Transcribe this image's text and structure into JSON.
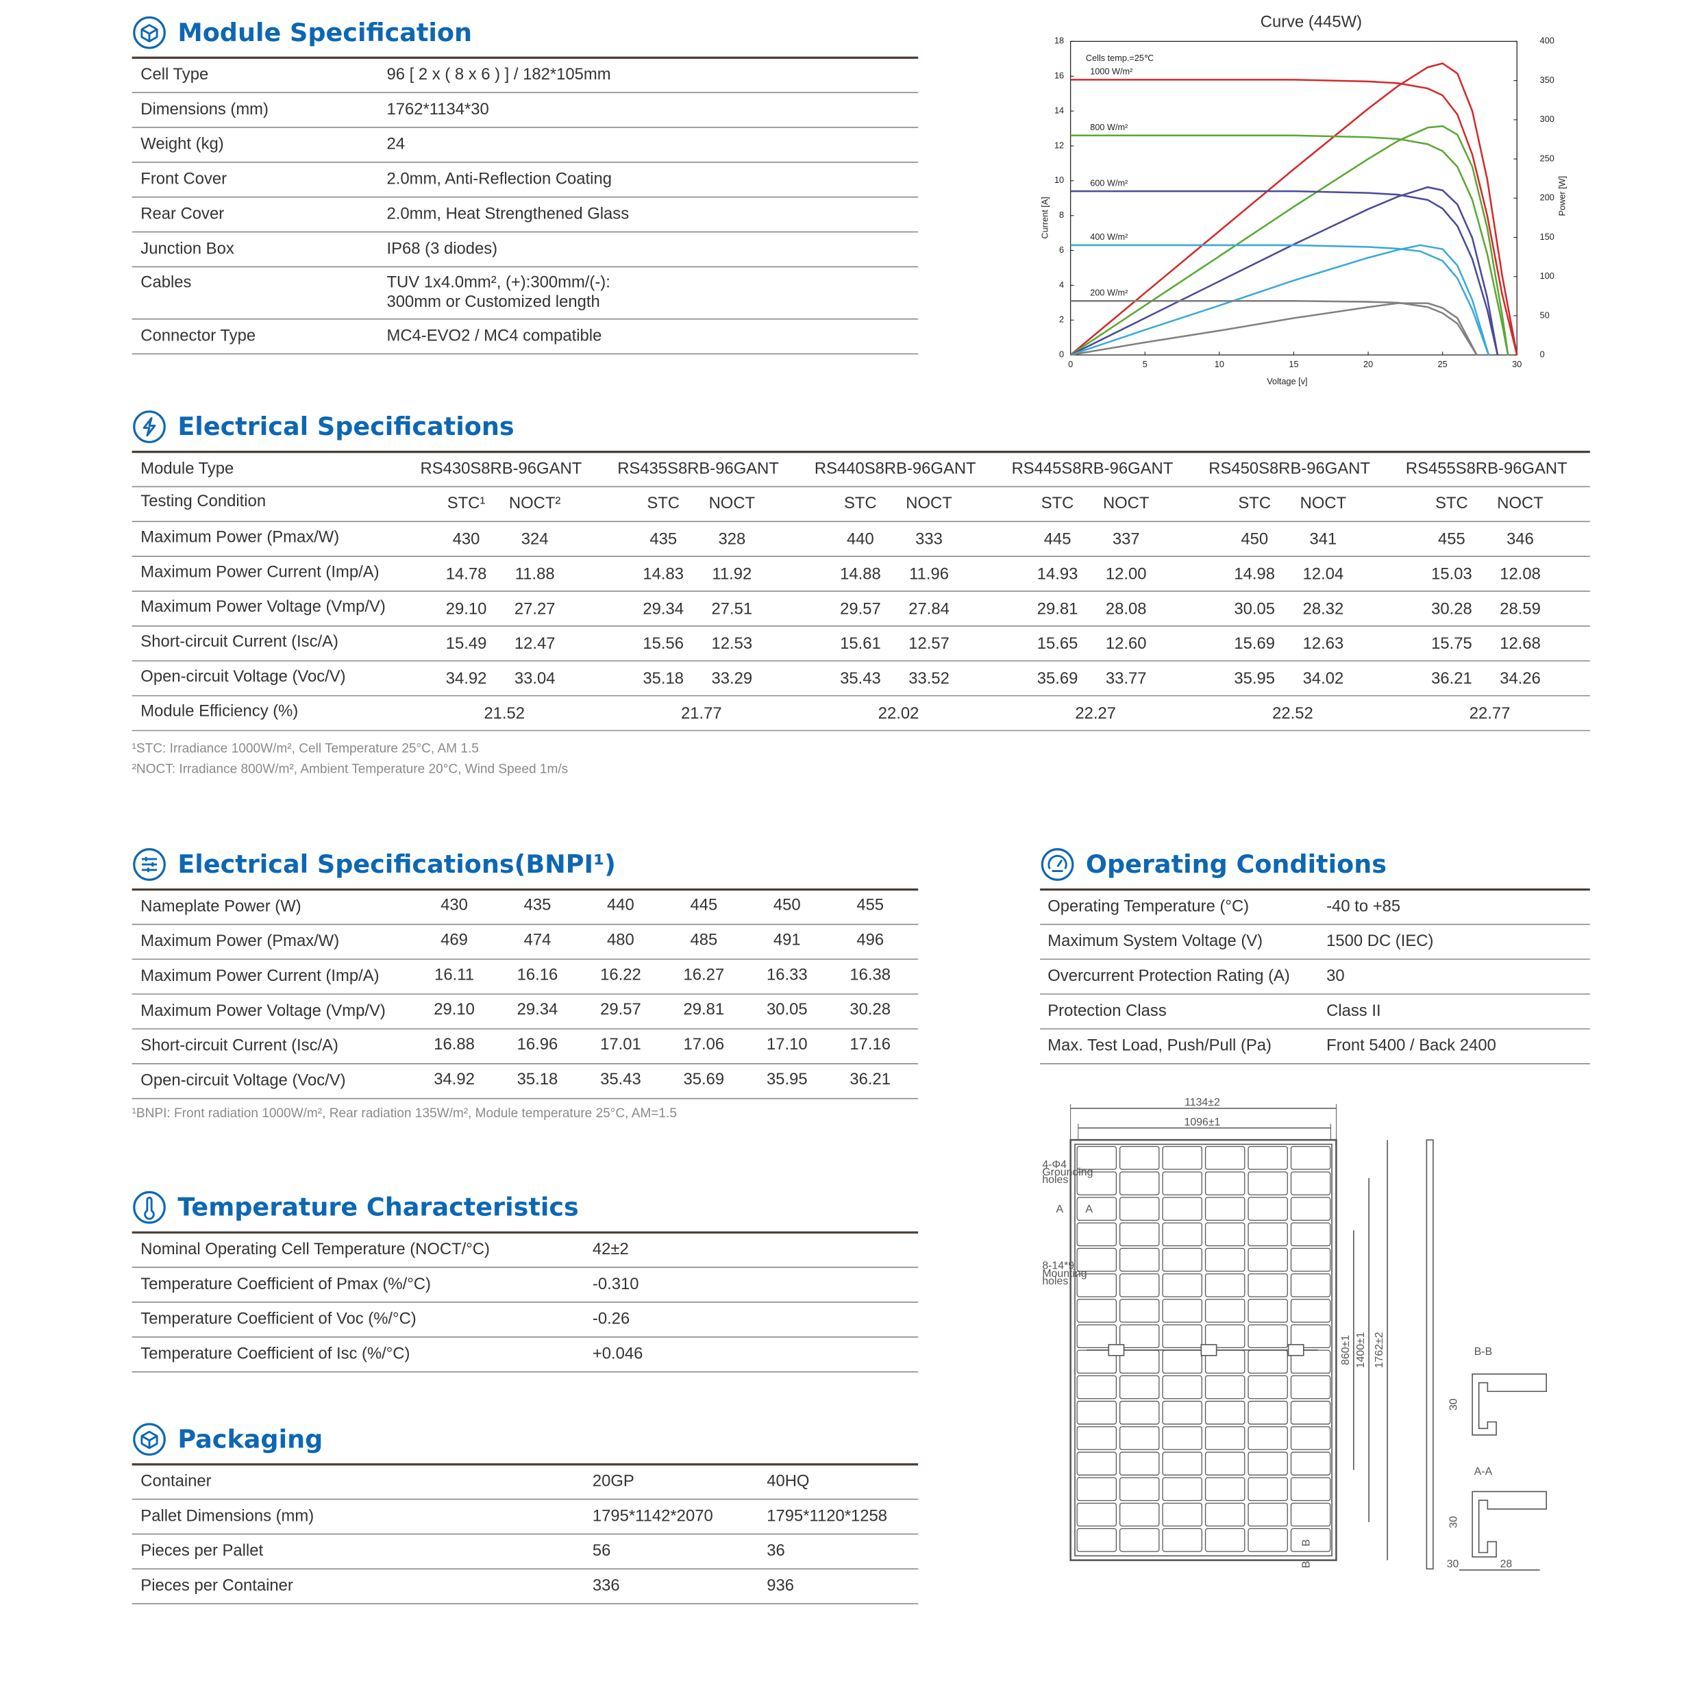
{
  "module_specification": {
    "title": "Module Specification",
    "rows": [
      [
        "Cell Type",
        "96 [ 2 x ( 8 x 6 ) ] / 182*105mm"
      ],
      [
        "Dimensions (mm)",
        "1762*1134*30"
      ],
      [
        "Weight (kg)",
        "24"
      ],
      [
        "Front Cover",
        "2.0mm, Anti-Reflection Coating"
      ],
      [
        "Rear Cover",
        "2.0mm, Heat Strengthened Glass"
      ],
      [
        "Junction Box",
        "IP68 (3 diodes)"
      ],
      [
        "Cables",
        [
          "TUV 1x4.0mm², (+):300mm/(-):",
          "300mm or Customized length"
        ]
      ],
      [
        "Connector Type",
        "MC4-EVO2 / MC4 compatible"
      ]
    ]
  },
  "curve": {
    "title": "Curve (445W)",
    "note": "Cells temp.=25℃",
    "xlabel": "Voltage [v]",
    "ylabel": "Current [A]",
    "y2label": "Power [W]",
    "xlim": [
      0,
      30
    ],
    "xticks": [
      0,
      5,
      10,
      15,
      20,
      25,
      30
    ],
    "ylim": [
      0,
      18
    ],
    "yticks": [
      0,
      2,
      4,
      6,
      8,
      10,
      12,
      14,
      16,
      18
    ],
    "y2lim": [
      0,
      400
    ],
    "y2ticks": [
      0,
      50,
      100,
      150,
      200,
      250,
      300,
      350,
      400
    ],
    "series": [
      {
        "name": "1000 W/m²",
        "color": "#d42a2a",
        "x": [
          0,
          5,
          10,
          15,
          20,
          22,
          24,
          25,
          26,
          27,
          28,
          29,
          30
        ],
        "current": [
          15.8,
          15.8,
          15.8,
          15.8,
          15.7,
          15.6,
          15.3,
          14.9,
          13.8,
          11.5,
          8,
          3.5,
          0
        ],
        "power": [
          0,
          79,
          158,
          237,
          314,
          343,
          367,
          372,
          359,
          311,
          224,
          102,
          0
        ]
      },
      {
        "name": "800 W/m²",
        "color": "#5aa832",
        "x": [
          0,
          5,
          10,
          15,
          20,
          22,
          24,
          25,
          26,
          27,
          28,
          29,
          29.4
        ],
        "current": [
          12.6,
          12.6,
          12.6,
          12.6,
          12.5,
          12.4,
          12.1,
          11.7,
          10.8,
          8.9,
          5.8,
          1.8,
          0
        ],
        "power": [
          0,
          63,
          126,
          189,
          250,
          273,
          290,
          292,
          281,
          240,
          162,
          52,
          0
        ]
      },
      {
        "name": "600 W/m²",
        "color": "#4a4a9a",
        "x": [
          0,
          5,
          10,
          15,
          20,
          22,
          24,
          25,
          26,
          27,
          28,
          28.7
        ],
        "current": [
          9.4,
          9.4,
          9.4,
          9.4,
          9.3,
          9.2,
          8.9,
          8.4,
          7.4,
          5.5,
          2.6,
          0
        ],
        "power": [
          0,
          47,
          94,
          141,
          186,
          202,
          214,
          210,
          192,
          149,
          73,
          0
        ]
      },
      {
        "name": "400 W/m²",
        "color": "#3aaad6",
        "x": [
          0,
          5,
          10,
          15,
          20,
          22,
          23.5,
          25,
          26,
          27,
          28.1
        ],
        "current": [
          6.3,
          6.3,
          6.3,
          6.3,
          6.2,
          6.1,
          5.95,
          5.4,
          4.4,
          2.6,
          0
        ],
        "power": [
          0,
          32,
          63,
          95,
          124,
          134,
          140,
          135,
          114,
          70,
          0
        ]
      },
      {
        "name": "200 W/m²",
        "color": "#808080",
        "x": [
          0,
          5,
          10,
          15,
          20,
          22,
          24,
          25,
          26,
          27.3
        ],
        "current": [
          3.1,
          3.1,
          3.1,
          3.1,
          3.05,
          3,
          2.75,
          2.4,
          1.8,
          0
        ],
        "power": [
          0,
          16,
          31,
          47,
          61,
          66,
          66,
          60,
          47,
          0
        ]
      }
    ]
  },
  "electrical_specifications": {
    "title": "Electrical Specifications",
    "header": [
      "Module Type",
      "RS430S8RB-96GANT",
      "RS435S8RB-96GANT",
      "RS440S8RB-96GANT",
      "RS445S8RB-96GANT",
      "RS450S8RB-96GANT",
      "RS455S8RB-96GANT"
    ],
    "condition": [
      "Testing Condition",
      "STC¹",
      "NOCT²",
      "STC",
      "NOCT",
      "STC",
      "NOCT",
      "STC",
      "NOCT",
      "STC",
      "NOCT",
      "STC",
      "NOCT"
    ],
    "rows": [
      [
        "Maximum Power (Pmax/W)",
        "430",
        "324",
        "435",
        "328",
        "440",
        "333",
        "445",
        "337",
        "450",
        "341",
        "455",
        "346"
      ],
      [
        "Maximum Power Current (Imp/A)",
        "14.78",
        "11.88",
        "14.83",
        "11.92",
        "14.88",
        "11.96",
        "14.93",
        "12.00",
        "14.98",
        "12.04",
        "15.03",
        "12.08"
      ],
      [
        "Maximum Power Voltage (Vmp/V)",
        "29.10",
        "27.27",
        "29.34",
        "27.51",
        "29.57",
        "27.84",
        "29.81",
        "28.08",
        "30.05",
        "28.32",
        "30.28",
        "28.59"
      ],
      [
        "Short-circuit Current (Isc/A)",
        "15.49",
        "12.47",
        "15.56",
        "12.53",
        "15.61",
        "12.57",
        "15.65",
        "12.60",
        "15.69",
        "12.63",
        "15.75",
        "12.68"
      ],
      [
        "Open-circuit Voltage (Voc/V)",
        "34.92",
        "33.04",
        "35.18",
        "33.29",
        "35.43",
        "33.52",
        "35.69",
        "33.77",
        "35.95",
        "34.02",
        "36.21",
        "34.26"
      ]
    ],
    "efficiency": [
      "Module Efficiency (%)",
      "21.52",
      "21.77",
      "22.02",
      "22.27",
      "22.52",
      "22.77"
    ],
    "notes": [
      "¹STC: Irradiance 1000W/m², Cell Temperature 25°C, AM 1.5",
      "²NOCT: Irradiance 800W/m², Ambient Temperature 20°C, Wind Speed 1m/s"
    ]
  },
  "electrical_specifications_bnpi": {
    "title": "Electrical Specifications(BNPI¹)",
    "rows": [
      [
        "Nameplate Power (W)",
        "430",
        "435",
        "440",
        "445",
        "450",
        "455"
      ],
      [
        "Maximum Power (Pmax/W)",
        "469",
        "474",
        "480",
        "485",
        "491",
        "496"
      ],
      [
        "Maximum Power Current (Imp/A)",
        "16.11",
        "16.16",
        "16.22",
        "16.27",
        "16.33",
        "16.38"
      ],
      [
        "Maximum Power Voltage (Vmp/V)",
        "29.10",
        "29.34",
        "29.57",
        "29.81",
        "30.05",
        "30.28"
      ],
      [
        "Short-circuit Current (Isc/A)",
        "16.88",
        "16.96",
        "17.01",
        "17.06",
        "17.10",
        "17.16"
      ],
      [
        "Open-circuit Voltage (Voc/V)",
        "34.92",
        "35.18",
        "35.43",
        "35.69",
        "35.95",
        "36.21"
      ]
    ],
    "note": "¹BNPI: Front radiation 1000W/m², Rear radiation 135W/m², Module temperature 25°C, AM=1.5"
  },
  "operating_conditions": {
    "title": "Operating Conditions",
    "rows": [
      [
        "Operating Temperature (°C)",
        "-40 to +85"
      ],
      [
        "Maximum System Voltage (V)",
        "1500 DC (IEC)"
      ],
      [
        "Overcurrent Protection Rating (A)",
        "30"
      ],
      [
        "Protection Class",
        "Class II"
      ],
      [
        "Max. Test Load, Push/Pull (Pa)",
        "Front 5400 / Back 2400"
      ]
    ]
  },
  "temperature_characteristics": {
    "title": "Temperature Characteristics",
    "rows": [
      [
        "Nominal Operating Cell Temperature (NOCT/°C)",
        "42±2"
      ],
      [
        "Temperature Coefficient of Pmax (%/°C)",
        "-0.310"
      ],
      [
        "Temperature Coefficient of Voc (%/°C)",
        "-0.26"
      ],
      [
        "Temperature Coefficient of Isc (%/°C)",
        "+0.046"
      ]
    ]
  },
  "packaging": {
    "title": "Packaging",
    "rows": [
      [
        "Container",
        "20GP",
        "40HQ"
      ],
      [
        "Pallet Dimensions (mm)",
        "1795*1142*2070",
        "1795*1120*1258"
      ],
      [
        "Pieces per Pallet",
        "56",
        "36"
      ],
      [
        "Pieces per Container",
        "336",
        "936"
      ]
    ]
  },
  "drawing": {
    "outer_width": "1134±2",
    "inner_width": "1096±1",
    "grounding_holes": [
      "4-Φ4",
      "Grounding",
      "holes"
    ],
    "mounting_holes": [
      "8-14*9",
      "Mounting",
      "holes"
    ],
    "section_a": "A",
    "section_b": "B",
    "hole_pitch": "860±1",
    "mount_pitch": "1400±1",
    "length": "1762±2",
    "section_bb": "B-B",
    "section_aa": "A-A",
    "frame_height": "30",
    "frame_width": "28"
  }
}
